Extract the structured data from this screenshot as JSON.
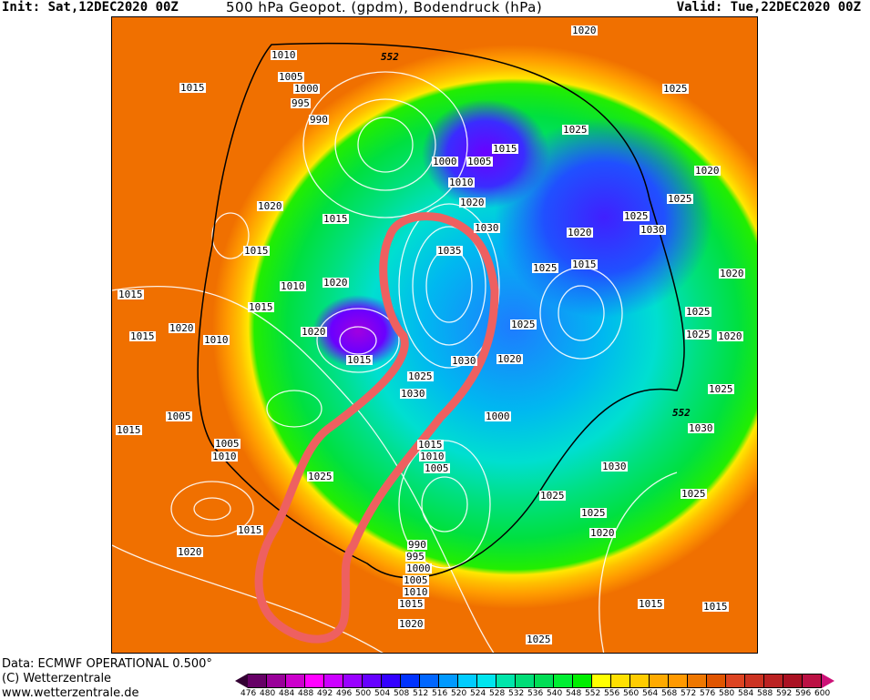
{
  "header": {
    "init": "Init: Sat,12DEC2020 00Z",
    "title": "500 hPa Geopot. (gpdm), Bodendruck (hPa)",
    "valid": "Valid: Tue,22DEC2020 00Z"
  },
  "footer": {
    "data_source": "Data: ECMWF OPERATIONAL 0.500°",
    "copyright": "(C) Wetterzentrale",
    "url": "www.wetterzentrale.de"
  },
  "colorbar": {
    "ticks": [
      "476",
      "480",
      "484",
      "488",
      "492",
      "496",
      "500",
      "504",
      "508",
      "512",
      "516",
      "520",
      "524",
      "528",
      "532",
      "536",
      "540",
      "548",
      "552",
      "556",
      "560",
      "564",
      "568",
      "572",
      "576",
      "580",
      "584",
      "588",
      "592",
      "596",
      "600"
    ],
    "low_color": "#330033",
    "high_color": "#cc1177",
    "colors": [
      "#660066",
      "#990099",
      "#cc00cc",
      "#ff00ff",
      "#cc00ff",
      "#9900ff",
      "#6600ff",
      "#3300ff",
      "#0033ff",
      "#0066ff",
      "#0099ff",
      "#00ccff",
      "#00e5ee",
      "#00e5aa",
      "#00dd77",
      "#00dd55",
      "#00ee33",
      "#00ee00",
      "#ffff00",
      "#ffe000",
      "#ffcc00",
      "#ffaa00",
      "#ff9900",
      "#ee7700",
      "#e05500",
      "#dd4422",
      "#cc3322",
      "#bb2222",
      "#aa1122",
      "#bb1144"
    ]
  },
  "map": {
    "contour_552_label": "552",
    "pressure_labels": [
      "1010",
      "1005",
      "1000",
      "995",
      "990",
      "552",
      "1020",
      "1015",
      "1025",
      "1025",
      "1015",
      "1000",
      "1005",
      "1010",
      "1020",
      "1030",
      "1020",
      "1015",
      "1015",
      "1035",
      "1020",
      "1025",
      "1030",
      "1020",
      "1025",
      "1020",
      "1025",
      "1015",
      "1015",
      "1010",
      "1020",
      "1015",
      "1020",
      "1015",
      "1020",
      "1010",
      "1025",
      "1025",
      "1025",
      "1020",
      "1015",
      "1030",
      "1020",
      "1025",
      "1030",
      "1025",
      "552",
      "1030",
      "1015",
      "1005",
      "1000",
      "1005",
      "1010",
      "1015",
      "1010",
      "1005",
      "1030",
      "1025",
      "1025",
      "1025",
      "1025",
      "1020",
      "1015",
      "1020",
      "990",
      "995",
      "1000",
      "1005",
      "1010",
      "1015",
      "1020",
      "1015",
      "1015",
      "1025"
    ],
    "annotation_color": "#ee6060"
  }
}
